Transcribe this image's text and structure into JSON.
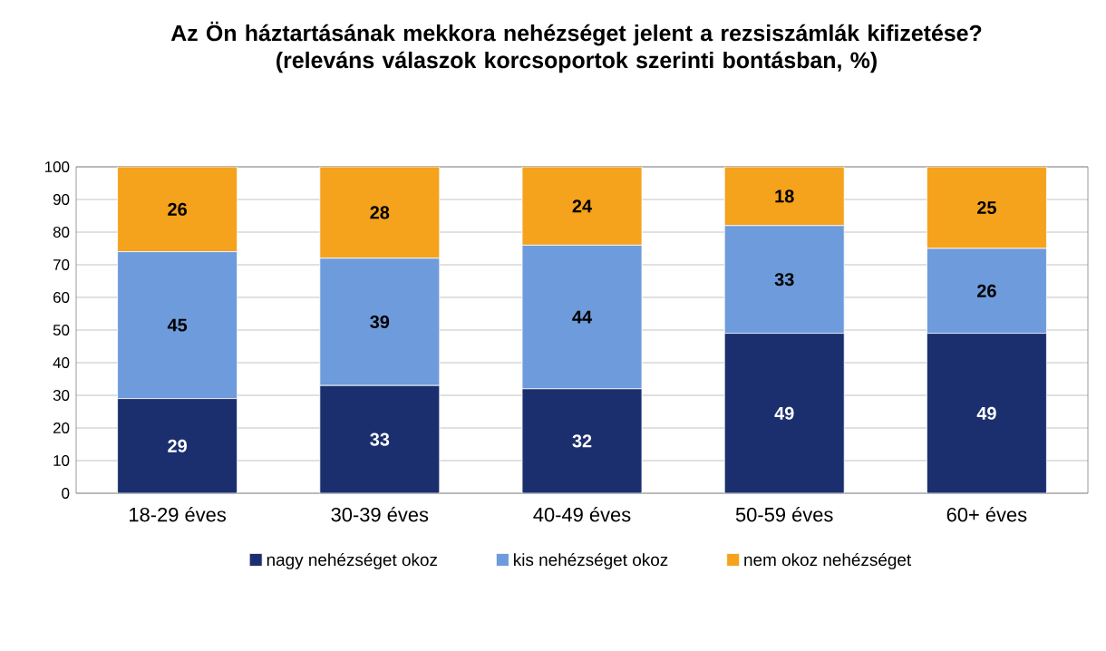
{
  "chart_data": {
    "type": "bar",
    "stacked": true,
    "title": "Az Ön háztartásának mekkora nehézséget jelent a rezsiszámlák kifizetése?",
    "subtitle": "(releváns válaszok korcsoportok szerinti bontásban, %)",
    "categories": [
      "18-29 éves",
      "30-39 éves",
      "40-49 éves",
      "50-59 éves",
      "60+ éves"
    ],
    "series": [
      {
        "name": "nagy nehézséget okoz",
        "color": "#1b2f6e",
        "values": [
          29,
          33,
          32,
          49,
          49
        ]
      },
      {
        "name": "kis nehézséget okoz",
        "color": "#6e9bdc",
        "values": [
          45,
          39,
          44,
          33,
          26
        ]
      },
      {
        "name": "nem okoz nehézséget",
        "color": "#f5a21c",
        "values": [
          26,
          28,
          24,
          18,
          25
        ]
      }
    ],
    "ylim": [
      0,
      100
    ],
    "yticks": [
      0,
      10,
      20,
      30,
      40,
      50,
      60,
      70,
      80,
      90,
      100
    ],
    "grid": "y",
    "legend": "bottom",
    "data_labels": true
  }
}
